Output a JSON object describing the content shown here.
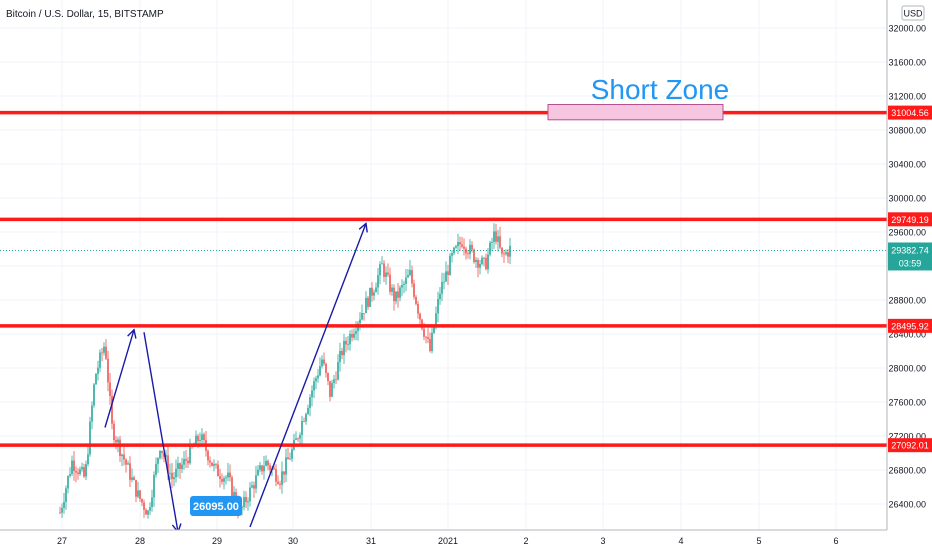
{
  "chart_data": {
    "type": "candlestick",
    "title": "Bitcoin / U.S. Dollar, 15, BITSTAMP",
    "currency": "USD",
    "y_ticks": [
      26400,
      26800,
      27200,
      27600,
      28000,
      28400,
      28800,
      29200,
      29600,
      30000,
      30400,
      30800,
      31200,
      31600,
      32000
    ],
    "ylim": [
      26050,
      32150
    ],
    "x_ticks": [
      "27",
      "28",
      "29",
      "30",
      "31",
      "2021",
      "2",
      "3",
      "4",
      "5",
      "6"
    ],
    "horizontal_levels": [
      {
        "value": 31004.56,
        "label": "31004.56",
        "color": "#ff1a1a"
      },
      {
        "value": 29749.19,
        "label": "29749.19",
        "color": "#ff1a1a"
      },
      {
        "value": 28495.92,
        "label": "28495.92",
        "color": "#ff1a1a"
      },
      {
        "value": 27092.01,
        "label": "27092.01",
        "color": "#ff1a1a"
      }
    ],
    "last_price": {
      "value": 29382.74,
      "label": "29382.74",
      "countdown": "03:59",
      "color": "#26a69a"
    },
    "zone": {
      "label": "Short Zone",
      "top": 31100,
      "bottom": 30920,
      "fill": "#f6c6e0",
      "stroke": "#b4518f"
    },
    "low_marker": {
      "label": "26095.00",
      "value": 26095,
      "color": "#2196f3"
    },
    "arrow_path_values": [
      27300,
      28450,
      26070,
      29700
    ],
    "colors": {
      "up": "#26a69a",
      "down": "#ef5350",
      "arrow": "#1a1aa8",
      "zone_text": "#2196f3"
    }
  }
}
